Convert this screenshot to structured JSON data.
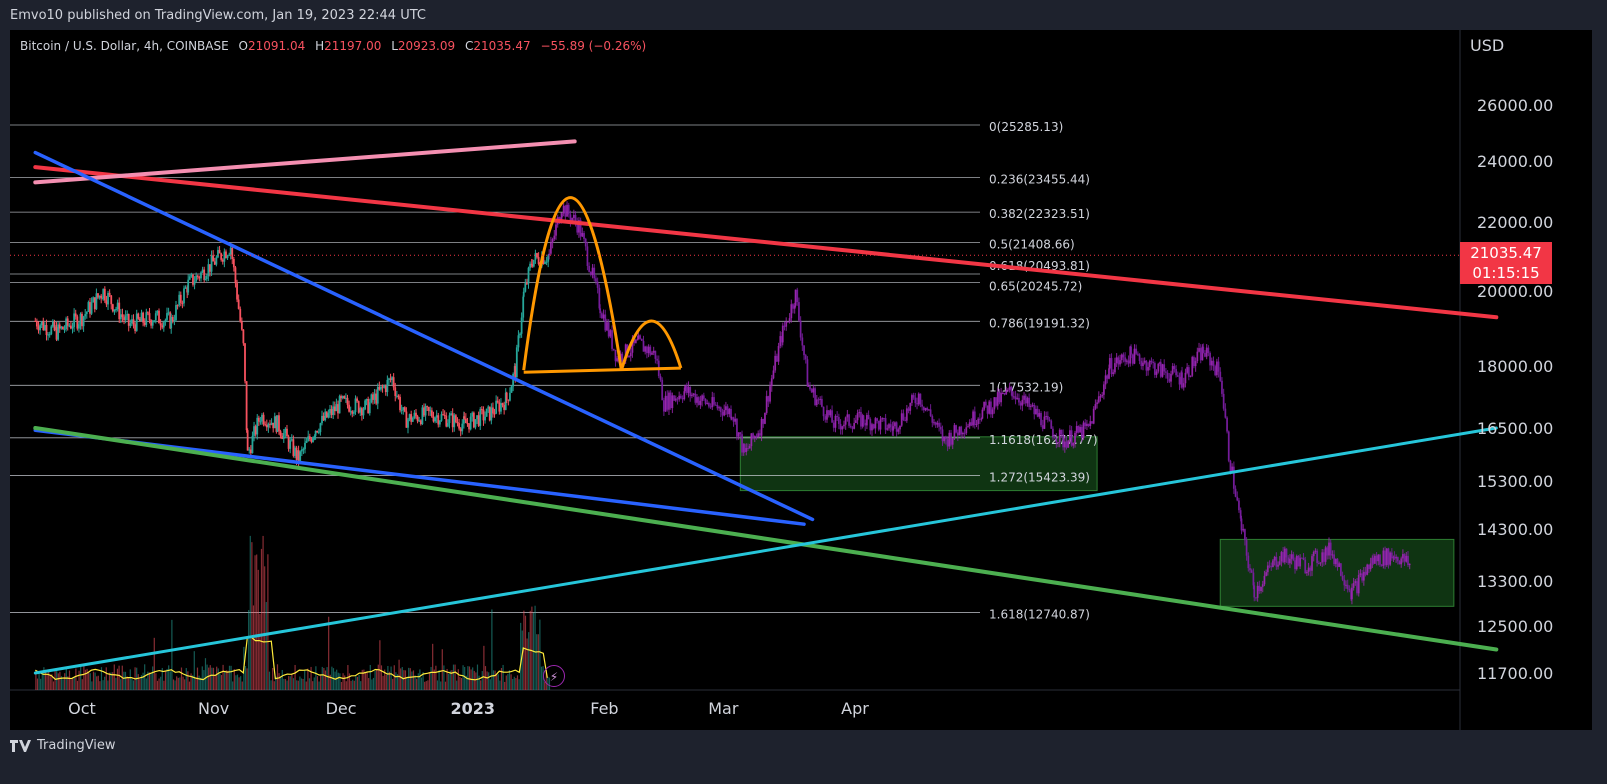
{
  "header": {
    "published": "Emvo10 published on TradingView.com, Jan 19, 2023 22:44 UTC"
  },
  "legend": {
    "symbol": "Bitcoin / U.S. Dollar, 4h, COINBASE",
    "o_label": "O",
    "o": "21091.04",
    "h_label": "H",
    "h": "21197.00",
    "l_label": "L",
    "l": "20923.09",
    "c_label": "C",
    "c": "21035.47",
    "change": "−55.89 (−0.26%)"
  },
  "price_axis": {
    "currency": "USD"
  },
  "last_price": {
    "value": "21035.47",
    "countdown": "01:15:15"
  },
  "footer": {
    "brand": "TradingView"
  },
  "colors": {
    "background": "#000000",
    "panel": "#1e222d",
    "down": "#f7525f",
    "up": "#26a69a",
    "projection": "#7b1fa2",
    "fib_line": "#d1d4dc",
    "resistance": "#f23645",
    "pink_ma": "#f48fb1",
    "blue_trend": "#2962ff",
    "green_trend": "#4caf50",
    "cyan_trend": "#26c6da",
    "pattern": "#ff9800",
    "zone": "#1b5e20",
    "volume_ma": "#ffeb3b"
  },
  "icons": {
    "bolt": "lightning-icon",
    "logo": "tradingview-logo-icon"
  },
  "chart_data": {
    "type": "candlestick",
    "title": "Bitcoin / U.S. Dollar, 4h, COINBASE",
    "ylim": [
      11500,
      27000
    ],
    "y_ticks": [
      26000,
      24000,
      22000,
      20000,
      18000,
      16500,
      15300,
      14300,
      13300,
      12500,
      11700
    ],
    "y_tick_labels": [
      "26000.00",
      "24000.00",
      "22000.00",
      "20000.00",
      "18000.00",
      "16500.00",
      "15300.00",
      "14300.00",
      "13300.00",
      "12500.00",
      "11700.00"
    ],
    "x_tick_labels": [
      "Oct",
      "Nov",
      "Dec",
      "2023",
      "Feb",
      "Mar",
      "Apr"
    ],
    "x_tick_dates": [
      "2022-10-01",
      "2022-11-01",
      "2022-12-01",
      "2023-01-01",
      "2023-02-01",
      "2023-03-01",
      "2023-04-01"
    ],
    "last_price": 21035.47,
    "fib_levels": [
      {
        "label": "0(25285.13)",
        "value": 25285.13
      },
      {
        "label": "0.236(23455.44)",
        "value": 23455.44
      },
      {
        "label": "0.382(22323.51)",
        "value": 22323.51
      },
      {
        "label": "0.5(21408.66)",
        "value": 21408.66
      },
      {
        "label": "0.618(20493.81)",
        "value": 20493.81
      },
      {
        "label": "0.65(20245.72)",
        "value": 20245.72
      },
      {
        "label": "0.786(19191.32)",
        "value": 19191.32
      },
      {
        "label": "1(17532.19)",
        "value": 17532.19
      },
      {
        "label": "1.1618(16277.77)",
        "value": 16277.77
      },
      {
        "label": "1.272(15423.39)",
        "value": 15423.39
      },
      {
        "label": "1.618(12740.87)",
        "value": 12740.87
      }
    ],
    "price_path": [
      [
        "2022-09-20",
        19200
      ],
      [
        "2022-09-25",
        18900
      ],
      [
        "2022-10-01",
        19300
      ],
      [
        "2022-10-06",
        20000
      ],
      [
        "2022-10-12",
        19100
      ],
      [
        "2022-10-18",
        19300
      ],
      [
        "2022-10-22",
        19200
      ],
      [
        "2022-10-26",
        20200
      ],
      [
        "2022-10-30",
        20600
      ],
      [
        "2022-11-05",
        21300
      ],
      [
        "2022-11-08",
        18500
      ],
      [
        "2022-11-09",
        15900
      ],
      [
        "2022-11-12",
        16800
      ],
      [
        "2022-11-16",
        16600
      ],
      [
        "2022-11-21",
        15800
      ],
      [
        "2022-11-25",
        16500
      ],
      [
        "2022-12-01",
        17100
      ],
      [
        "2022-12-07",
        17000
      ],
      [
        "2022-12-13",
        17700
      ],
      [
        "2022-12-16",
        16700
      ],
      [
        "2022-12-22",
        16850
      ],
      [
        "2022-12-30",
        16600
      ],
      [
        "2023-01-05",
        16850
      ],
      [
        "2023-01-09",
        17200
      ],
      [
        "2023-01-11",
        17900
      ],
      [
        "2023-01-13",
        19900
      ],
      [
        "2023-01-15",
        20900
      ],
      [
        "2023-01-19",
        21035
      ]
    ],
    "projection_path": [
      [
        "2023-01-19",
        21035
      ],
      [
        "2023-01-22",
        22500
      ],
      [
        "2023-01-26",
        21900
      ],
      [
        "2023-01-31",
        19600
      ],
      [
        "2023-02-04",
        18200
      ],
      [
        "2023-02-09",
        18600
      ],
      [
        "2023-02-13",
        18300
      ],
      [
        "2023-02-15",
        17100
      ],
      [
        "2023-02-20",
        17400
      ],
      [
        "2023-02-26",
        17050
      ],
      [
        "2023-03-03",
        16900
      ],
      [
        "2023-03-06",
        15900
      ],
      [
        "2023-03-10",
        16600
      ],
      [
        "2023-03-15",
        18900
      ],
      [
        "2023-03-18",
        19900
      ],
      [
        "2023-03-21",
        17500
      ],
      [
        "2023-03-27",
        16600
      ],
      [
        "2023-04-03",
        16700
      ],
      [
        "2023-04-10",
        16500
      ],
      [
        "2023-04-16",
        17300
      ],
      [
        "2023-04-22",
        16200
      ],
      [
        "2023-05-01",
        16900
      ],
      [
        "2023-05-08",
        17400
      ],
      [
        "2023-05-14",
        16800
      ],
      [
        "2023-05-20",
        16200
      ],
      [
        "2023-05-26",
        16500
      ],
      [
        "2023-05-31",
        18000
      ],
      [
        "2023-06-05",
        18300
      ],
      [
        "2023-06-12",
        17900
      ],
      [
        "2023-06-17",
        17700
      ],
      [
        "2023-06-22",
        18400
      ],
      [
        "2023-06-26",
        17800
      ],
      [
        "2023-06-28",
        15900
      ],
      [
        "2023-07-01",
        14300
      ],
      [
        "2023-07-04",
        13100
      ],
      [
        "2023-07-10",
        13800
      ],
      [
        "2023-07-16",
        13600
      ],
      [
        "2023-07-22",
        13900
      ],
      [
        "2023-07-27",
        13100
      ],
      [
        "2023-08-01",
        13700
      ],
      [
        "2023-08-06",
        13800
      ],
      [
        "2023-08-10",
        13600
      ]
    ],
    "trendlines": [
      {
        "name": "red-resistance",
        "points": [
          [
            "2022-09-20",
            23800
          ],
          [
            "2023-08-30",
            19300
          ]
        ]
      },
      {
        "name": "pink-ma",
        "points": [
          [
            "2022-09-20",
            23300
          ],
          [
            "2023-01-25",
            24700
          ]
        ]
      },
      {
        "name": "blue-upper",
        "points": [
          [
            "2022-09-20",
            24300
          ],
          [
            "2023-03-22",
            14500
          ]
        ]
      },
      {
        "name": "blue-lower",
        "points": [
          [
            "2022-09-20",
            16450
          ],
          [
            "2023-03-20",
            14400
          ]
        ]
      },
      {
        "name": "green-support",
        "points": [
          [
            "2022-09-20",
            16500
          ],
          [
            "2023-08-30",
            12100
          ]
        ]
      },
      {
        "name": "cyan-rising",
        "points": [
          [
            "2022-09-20",
            11700
          ],
          [
            "2023-08-30",
            16500
          ]
        ]
      }
    ],
    "pattern": {
      "neckline": [
        [
          "2023-01-13",
          17850
        ],
        [
          "2023-02-19",
          17950
        ]
      ],
      "arch_left": [
        [
          "2023-01-13",
          17900
        ],
        [
          "2023-01-24",
          22800
        ],
        [
          "2023-02-05",
          17900
        ]
      ],
      "arch_right": [
        [
          "2023-02-05",
          17900
        ],
        [
          "2023-02-12",
          19200
        ],
        [
          "2023-02-19",
          17950
        ]
      ]
    },
    "zones": [
      {
        "from": "2023-03-05",
        "to": "2023-05-28",
        "top": 16300,
        "bottom": 15100
      },
      {
        "from": "2023-06-26",
        "to": "2023-08-20",
        "top": 14100,
        "bottom": 12850
      }
    ]
  }
}
